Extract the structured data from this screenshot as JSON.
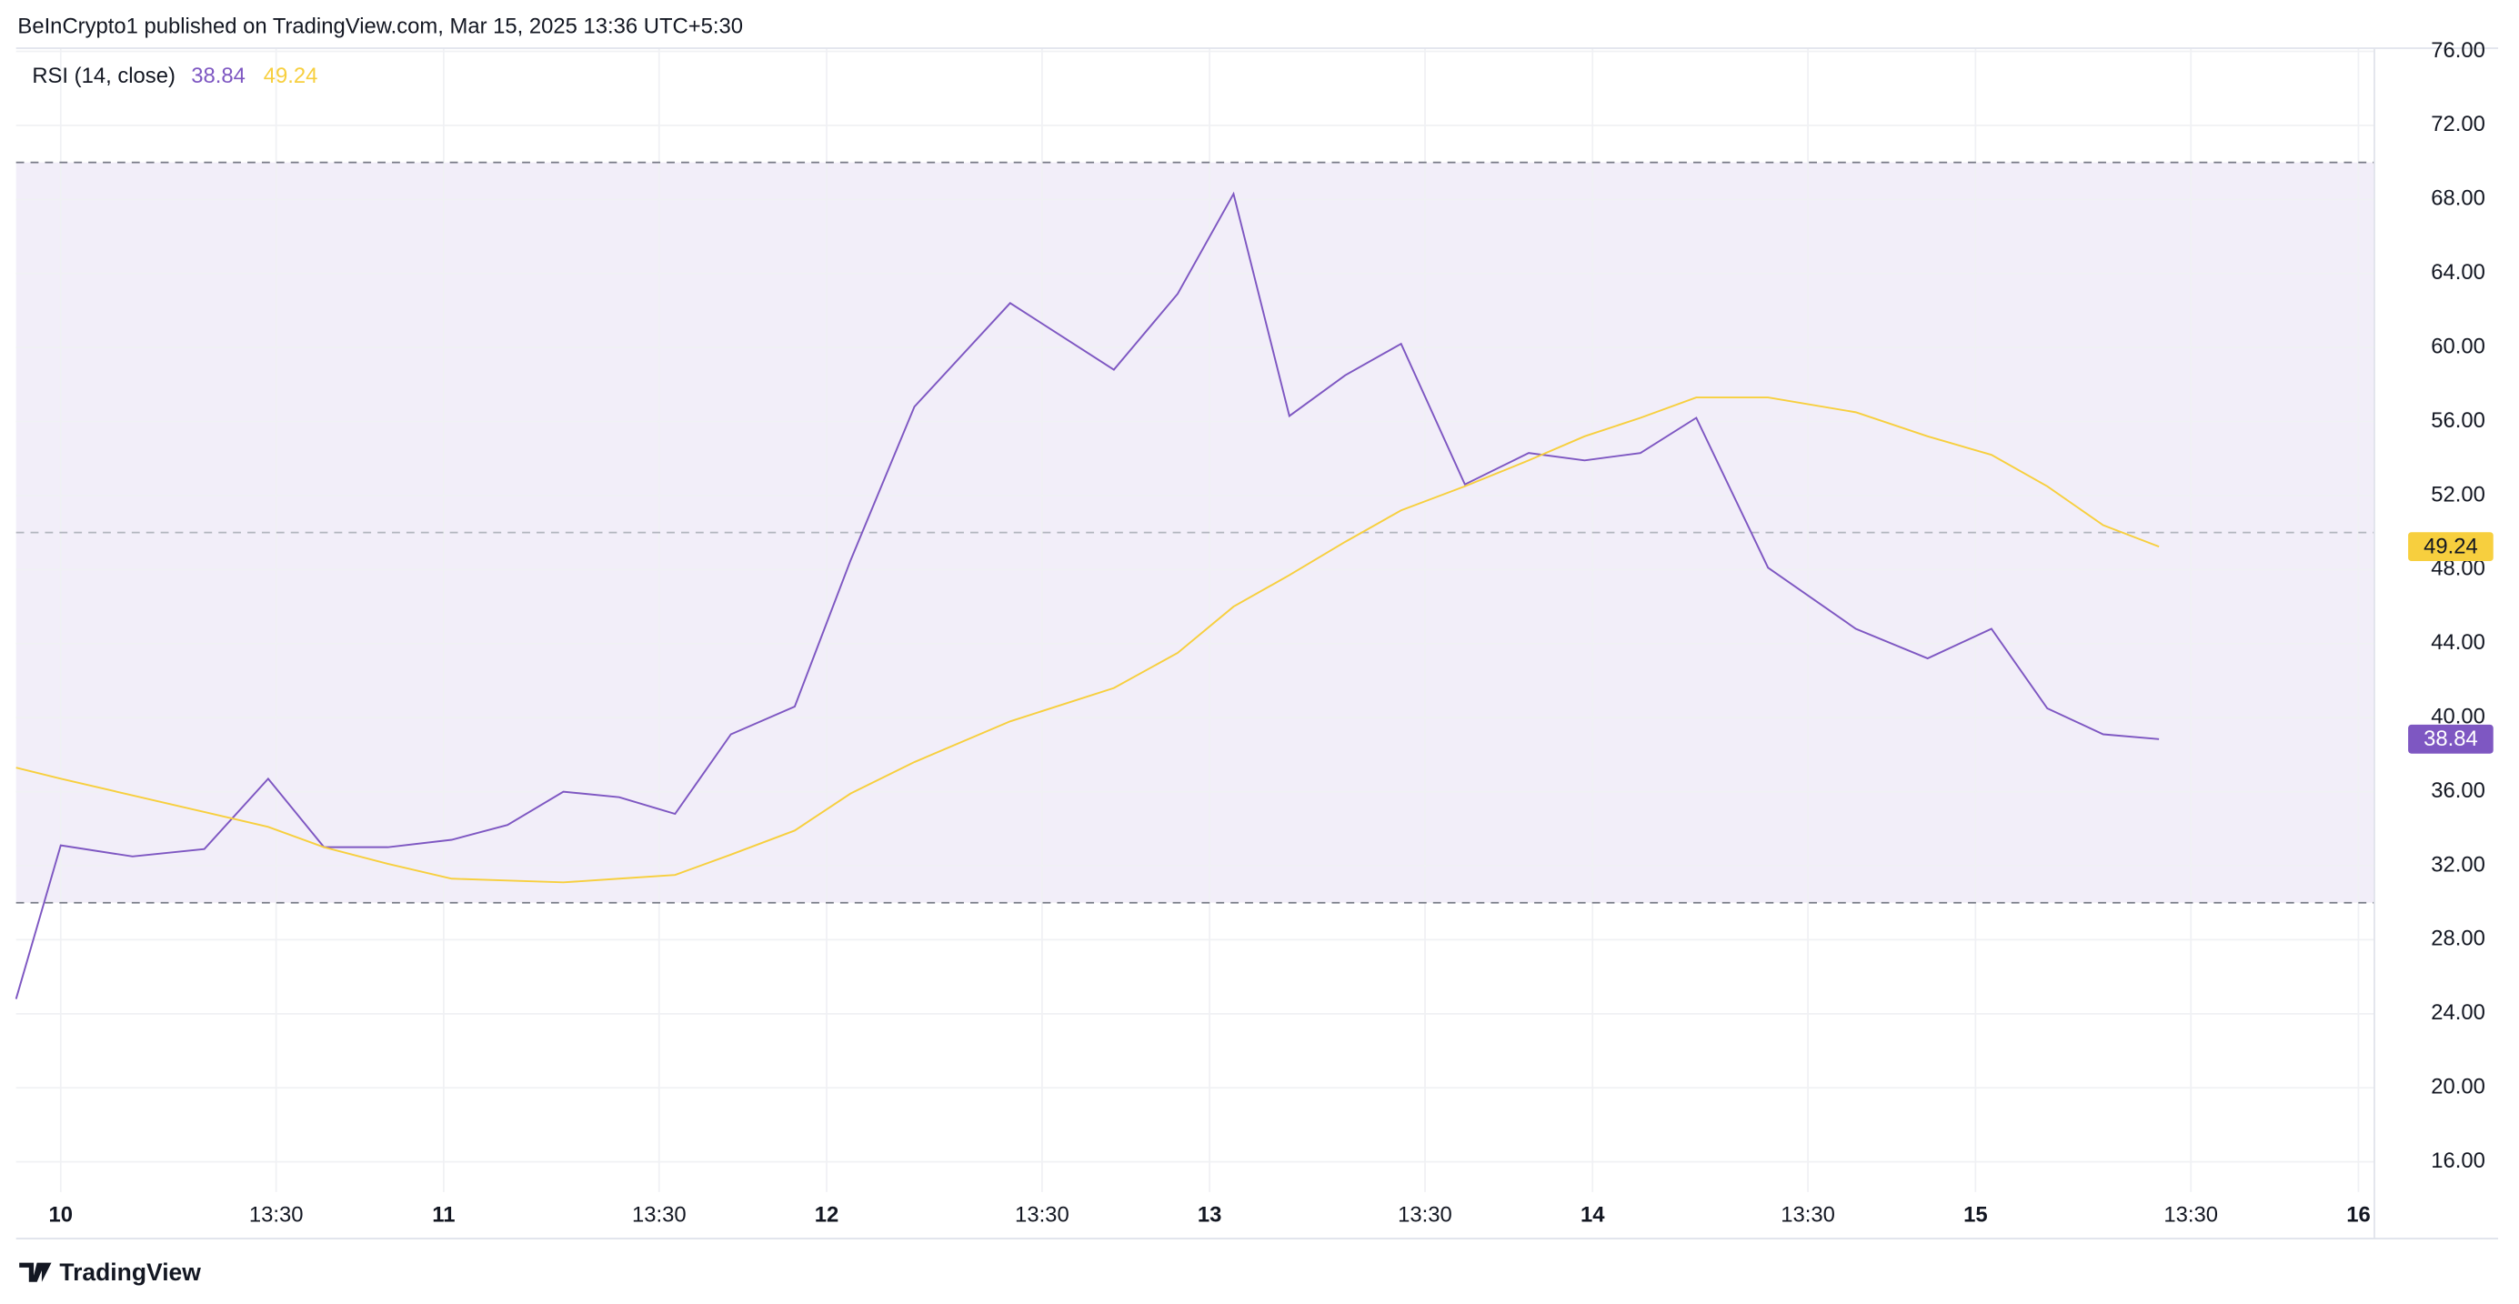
{
  "header": "BeInCrypto1 published on TradingView.com, Mar 15, 2025 13:36 UTC+5:30",
  "footer": "TradingView",
  "chart_data": {
    "type": "line",
    "indicator": "RSI (14, close)",
    "x": [
      -2.8,
      0,
      4.5,
      9,
      13,
      16.5,
      20.5,
      24.5,
      28,
      31.5,
      35,
      38.5,
      42,
      46,
      49.5,
      53.5,
      59.5,
      66,
      70,
      73.5,
      77,
      80.5,
      84,
      88,
      92,
      95.5,
      99,
      102.5,
      107,
      112.5,
      117,
      121,
      124.5,
      128,
      131.5
    ],
    "series": [
      {
        "color": "#7e57c2",
        "values": [
          24.8,
          33.1,
          32.5,
          32.9,
          36.7,
          33.0,
          33.0,
          33.4,
          34.2,
          36.0,
          35.7,
          34.8,
          39.1,
          40.6,
          48.5,
          56.8,
          62.4,
          58.8,
          62.9,
          68.3,
          56.3,
          58.5,
          60.2,
          52.6,
          54.3,
          53.9,
          54.3,
          56.2,
          48.1,
          44.8,
          43.2,
          44.8,
          40.5,
          39.1,
          38.84
        ]
      },
      {
        "color": "#f7cf3e",
        "values": [
          37.3,
          36.7,
          35.8,
          34.9,
          34.1,
          33.0,
          32.1,
          31.3,
          31.2,
          31.1,
          31.3,
          31.5,
          32.6,
          33.9,
          35.9,
          37.6,
          39.8,
          41.6,
          43.5,
          46.0,
          47.7,
          49.5,
          51.2,
          52.5,
          53.9,
          55.2,
          56.2,
          57.3,
          57.3,
          56.5,
          55.2,
          54.2,
          52.5,
          50.4,
          49.24
        ]
      }
    ],
    "hlines": [
      70,
      50,
      30
    ],
    "band_color": "#7e57c2",
    "xlim": [
      -2.8,
      145
    ],
    "xticks": [
      {
        "value": 0,
        "label": "10"
      },
      {
        "value": 13.5,
        "label": "13:30"
      },
      {
        "value": 24,
        "label": "11"
      },
      {
        "value": 37.5,
        "label": "13:30"
      },
      {
        "value": 48,
        "label": "12"
      },
      {
        "value": 61.5,
        "label": "13:30"
      },
      {
        "value": 72,
        "label": "13"
      },
      {
        "value": 85.5,
        "label": "13:30"
      },
      {
        "value": 96,
        "label": "14"
      },
      {
        "value": 109.5,
        "label": "13:30"
      },
      {
        "value": 120,
        "label": "15"
      },
      {
        "value": 133.5,
        "label": "13:30"
      },
      {
        "value": 144,
        "label": "16"
      }
    ],
    "ylim": [
      14.37,
      76.17
    ],
    "yticks": [
      {
        "value": 16,
        "label": "16.00"
      },
      {
        "value": 20,
        "label": "20.00"
      },
      {
        "value": 24,
        "label": "24.00"
      },
      {
        "value": 28,
        "label": "28.00"
      },
      {
        "value": 32,
        "label": "32.00"
      },
      {
        "value": 36,
        "label": "36.00"
      },
      {
        "value": 40,
        "label": "40.00"
      },
      {
        "value": 44,
        "label": "44.00"
      },
      {
        "value": 48,
        "label": "48.00"
      },
      {
        "value": 52,
        "label": "52.00"
      },
      {
        "value": 56,
        "label": "56.00"
      },
      {
        "value": 60,
        "label": "60.00"
      },
      {
        "value": 64,
        "label": "64.00"
      },
      {
        "value": 68,
        "label": "68.00"
      },
      {
        "value": 72,
        "label": "72.00"
      },
      {
        "value": 76,
        "label": "76.00"
      }
    ],
    "grid": true
  }
}
